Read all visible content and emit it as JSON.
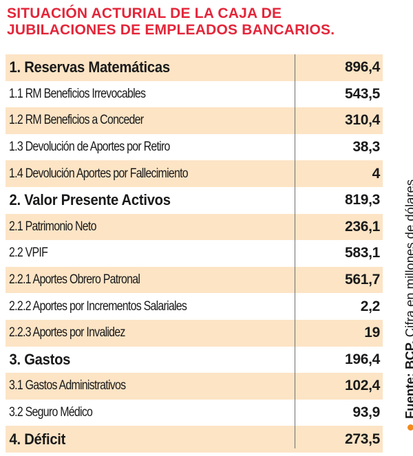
{
  "title": {
    "line1": "SITUACIÓN ACTURIAL DE LA CAJA DE",
    "line2": "JUBILACIONES DE EMPLEADOS BANCARIOS."
  },
  "rows": [
    {
      "label": "1.  Reservas Matemáticas",
      "value": "896,4",
      "level": "major",
      "shaded": true
    },
    {
      "label": "1.1  RM Beneficios Irrevocables",
      "value": "543,5",
      "level": "minor",
      "shaded": false
    },
    {
      "label": "1.2 RM Beneficios a Conceder",
      "value": "310,4",
      "level": "minor",
      "shaded": true
    },
    {
      "label": "1.3 Devolución de Aportes por Retiro",
      "value": "38,3",
      "level": "minor",
      "shaded": false
    },
    {
      "label": "1.4 Devolución Aportes por Fallecimiento",
      "value": "4",
      "level": "minor",
      "shaded": true
    },
    {
      "label": "2.  Valor Presente Activos",
      "value": "819,3",
      "level": "major",
      "shaded": false
    },
    {
      "label": "2.1 Patrimonio Neto",
      "value": "236,1",
      "level": "minor",
      "shaded": true
    },
    {
      "label": "2.2 VPIF",
      "value": "583,1",
      "level": "minor",
      "shaded": false
    },
    {
      "label": "2.2.1 Aportes Obrero Patronal",
      "value": "561,7",
      "level": "minor",
      "shaded": true
    },
    {
      "label": "2.2.2 Aportes por Incrementos Salariales",
      "value": "2,2",
      "level": "minor",
      "shaded": false
    },
    {
      "label": "2.2.3 Aportes por Invalidez",
      "value": "19",
      "level": "minor",
      "shaded": true
    },
    {
      "label": "3. Gastos",
      "value": "196,4",
      "level": "major",
      "shaded": false
    },
    {
      "label": "3.1 Gastos Administrativos",
      "value": "102,4",
      "level": "minor",
      "shaded": true
    },
    {
      "label": "3.2 Seguro Médico",
      "value": "93,9",
      "level": "minor",
      "shaded": false
    },
    {
      "label": "4. Déficit",
      "value": "273,5",
      "level": "major",
      "shaded": true
    }
  ],
  "source": {
    "label": "Fuente: BCP.",
    "note": "Cifra en millones de dólares."
  },
  "colors": {
    "title": "#e3263a",
    "row_shade": "#fce4c5",
    "bullet": "#f28a1e",
    "divider": "#6f6f6f"
  }
}
